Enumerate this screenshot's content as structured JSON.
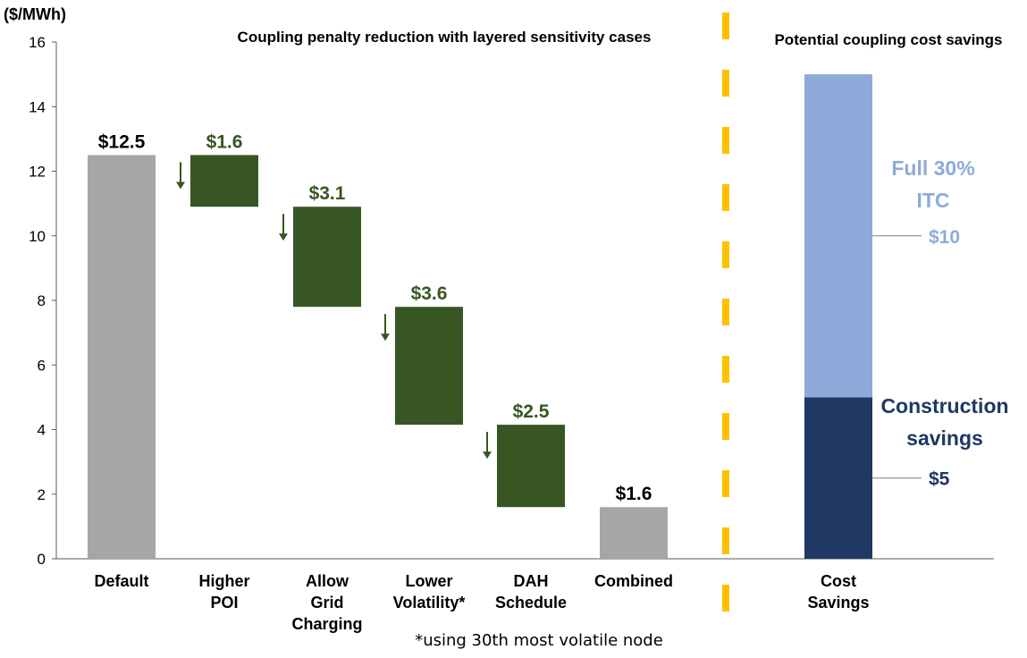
{
  "chart_data": {
    "type": "waterfall",
    "unit_label": "($/MWh)",
    "ylim": [
      0,
      16
    ],
    "y_ticks": [
      "0",
      "2",
      "4",
      "6",
      "8",
      "10",
      "12",
      "14",
      "16"
    ],
    "left_title": "Coupling penalty reduction with layered sensitivity cases",
    "right_title": "Potential coupling cost savings",
    "footnote": "*using 30th most volatile node",
    "steps": [
      {
        "category": [
          "Default"
        ],
        "kind": "total",
        "start": 0,
        "end": 12.5,
        "label": "$12.5"
      },
      {
        "category": [
          "Higher",
          "POI"
        ],
        "kind": "decrease",
        "start": 12.5,
        "end": 10.9,
        "label": "$1.6"
      },
      {
        "category": [
          "Allow",
          "Grid",
          "Charging"
        ],
        "kind": "decrease",
        "start": 10.9,
        "end": 7.8,
        "label": "$3.1"
      },
      {
        "category": [
          "Lower",
          "Volatility*"
        ],
        "kind": "decrease",
        "start": 7.8,
        "end": 4.15,
        "label": "$3.6"
      },
      {
        "category": [
          "DAH",
          "Schedule"
        ],
        "kind": "decrease",
        "start": 4.15,
        "end": 1.6,
        "label": "$2.5"
      },
      {
        "category": [
          "Combined"
        ],
        "kind": "total",
        "start": 0,
        "end": 1.6,
        "label": "$1.6"
      }
    ],
    "savings": {
      "category": [
        "Cost",
        "Savings"
      ],
      "segments": [
        {
          "name": [
            "Construction",
            "savings"
          ],
          "start": 0,
          "end": 5,
          "value_label": "$5"
        },
        {
          "name": [
            "Full 30%",
            "ITC"
          ],
          "start": 5,
          "end": 15,
          "value_label": "$10"
        }
      ]
    },
    "colors": {
      "total": "#a6a6a6",
      "decrease": "#375623",
      "decrease_label": "#375623",
      "total_label": "#000000",
      "construction": "#1f3864",
      "itc": "#8eaadb",
      "divider": "#ffc000",
      "axis": "#595959"
    }
  }
}
